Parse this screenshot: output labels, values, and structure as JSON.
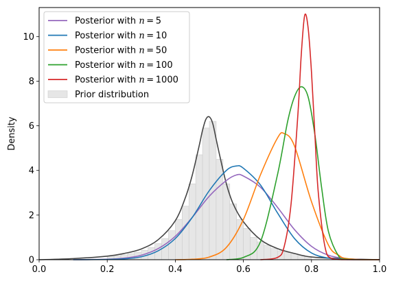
{
  "chart_data": {
    "type": "line",
    "title": "",
    "xlabel": "",
    "ylabel": "Density",
    "xlim": [
      0.0,
      1.0
    ],
    "ylim": [
      0,
      11.3
    ],
    "grid": false,
    "legend_position": "top-left",
    "xticks": [
      0.0,
      0.2,
      0.4,
      0.6,
      0.8,
      1.0
    ],
    "xtick_labels": [
      "0.0",
      "0.2",
      "0.4",
      "0.6",
      "0.8",
      "1.0"
    ],
    "yticks": [
      0,
      2,
      4,
      6,
      8,
      10
    ],
    "ytick_labels": [
      "0",
      "2",
      "4",
      "6",
      "8",
      "10"
    ],
    "series": [
      {
        "name": "Posterior with n = 5",
        "legend_prefix": "Posterior with ",
        "legend_math": "n = 5",
        "color": "#9467bd",
        "x": [
          0.1,
          0.2,
          0.25,
          0.3,
          0.35,
          0.4,
          0.45,
          0.5,
          0.55,
          0.58,
          0.6,
          0.65,
          0.7,
          0.75,
          0.8,
          0.85,
          0.9,
          0.95,
          1.0
        ],
        "y": [
          0.0,
          0.02,
          0.07,
          0.2,
          0.5,
          1.05,
          1.9,
          2.85,
          3.55,
          3.8,
          3.75,
          3.25,
          2.35,
          1.35,
          0.6,
          0.2,
          0.05,
          0.01,
          0.0
        ]
      },
      {
        "name": "Posterior with n = 10",
        "legend_prefix": "Posterior with ",
        "legend_math": "n = 10",
        "color": "#1f77b4",
        "x": [
          0.1,
          0.2,
          0.25,
          0.3,
          0.35,
          0.4,
          0.45,
          0.5,
          0.55,
          0.58,
          0.6,
          0.65,
          0.7,
          0.75,
          0.8,
          0.85,
          0.9,
          0.95,
          1.0
        ],
        "y": [
          0.0,
          0.01,
          0.04,
          0.13,
          0.4,
          0.95,
          1.9,
          3.1,
          4.0,
          4.2,
          4.1,
          3.35,
          2.1,
          0.95,
          0.3,
          0.07,
          0.01,
          0.0,
          0.0
        ]
      },
      {
        "name": "Posterior with n = 50",
        "legend_prefix": "Posterior with ",
        "legend_math": "n = 50",
        "color": "#ff7f0e",
        "x": [
          0.4,
          0.45,
          0.5,
          0.55,
          0.6,
          0.65,
          0.7,
          0.72,
          0.75,
          0.8,
          0.85,
          0.88,
          0.9,
          0.95,
          1.0
        ],
        "y": [
          0.0,
          0.02,
          0.12,
          0.55,
          1.8,
          3.8,
          5.45,
          5.65,
          5.1,
          2.6,
          0.65,
          0.2,
          0.06,
          0.0,
          0.0
        ]
      },
      {
        "name": "Posterior with n = 100",
        "legend_prefix": "Posterior with ",
        "legend_math": "n = 100",
        "color": "#2ca02c",
        "x": [
          0.55,
          0.6,
          0.65,
          0.7,
          0.73,
          0.75,
          0.77,
          0.79,
          0.81,
          0.83,
          0.85,
          0.88,
          0.9,
          1.0
        ],
        "y": [
          0.0,
          0.1,
          0.8,
          3.8,
          6.2,
          7.3,
          7.75,
          7.3,
          5.6,
          3.2,
          1.25,
          0.15,
          0.02,
          0.0
        ]
      },
      {
        "name": "Posterior with n = 1000",
        "legend_prefix": "Posterior with ",
        "legend_math": "n = 1000",
        "color": "#d62728",
        "x": [
          0.65,
          0.7,
          0.72,
          0.74,
          0.76,
          0.77,
          0.78,
          0.79,
          0.8,
          0.81,
          0.82,
          0.84,
          0.86,
          0.9,
          1.0
        ],
        "y": [
          0.0,
          0.1,
          0.6,
          2.5,
          6.5,
          9.2,
          10.95,
          10.4,
          8.4,
          5.6,
          3.0,
          0.55,
          0.05,
          0.0,
          0.0
        ]
      }
    ],
    "prior": {
      "name": "Prior distribution",
      "line_color": "#444444",
      "bar_color": "#e6e6e6",
      "bar_edge_color": "#cccccc",
      "curve_x": [
        0.0,
        0.1,
        0.2,
        0.25,
        0.3,
        0.35,
        0.4,
        0.43,
        0.45,
        0.47,
        0.48,
        0.49,
        0.5,
        0.51,
        0.52,
        0.53,
        0.55,
        0.57,
        0.6,
        0.65,
        0.7,
        0.75,
        0.8,
        0.9,
        1.0
      ],
      "curve_y": [
        0.0,
        0.05,
        0.16,
        0.28,
        0.48,
        0.9,
        1.75,
        2.8,
        3.8,
        5.1,
        5.8,
        6.3,
        6.4,
        6.1,
        5.4,
        4.7,
        3.4,
        2.5,
        1.7,
        0.9,
        0.5,
        0.28,
        0.12,
        0.04,
        0.0
      ],
      "bin_edges": [
        0.2,
        0.22,
        0.24,
        0.26,
        0.28,
        0.3,
        0.32,
        0.34,
        0.36,
        0.38,
        0.4,
        0.42,
        0.44,
        0.46,
        0.48,
        0.5,
        0.52,
        0.54,
        0.56,
        0.58,
        0.6,
        0.62,
        0.64,
        0.66,
        0.68,
        0.7,
        0.72,
        0.74,
        0.76,
        0.78,
        0.8
      ],
      "bin_heights": [
        0.15,
        0.18,
        0.22,
        0.27,
        0.33,
        0.42,
        0.55,
        0.72,
        0.95,
        1.3,
        1.8,
        2.4,
        3.4,
        4.7,
        5.9,
        6.2,
        4.5,
        3.4,
        2.5,
        1.8,
        1.4,
        1.0,
        0.8,
        0.65,
        0.5,
        0.4,
        0.32,
        0.26,
        0.2,
        0.15
      ]
    }
  }
}
